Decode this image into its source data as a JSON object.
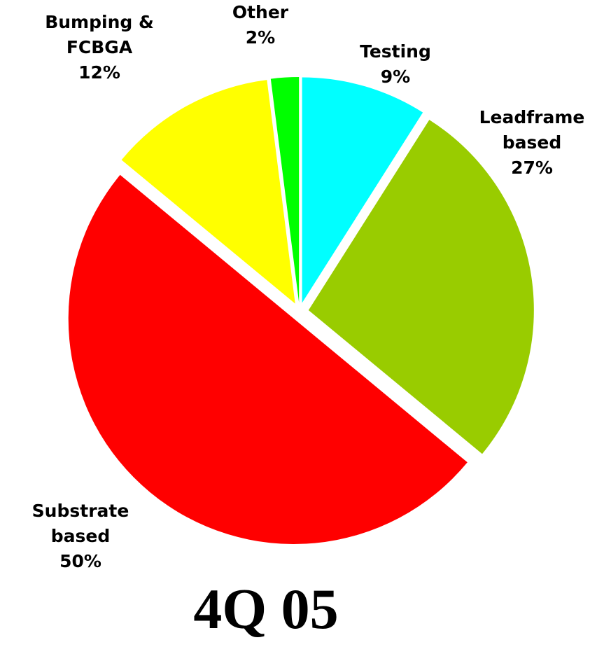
{
  "chart_data": {
    "type": "pie",
    "title": "4Q 05",
    "categories": [
      "Testing",
      "Leadframe based",
      "Substrate based",
      "Bumping & FCBGA",
      "Other"
    ],
    "values": [
      9,
      27,
      50,
      12,
      2
    ],
    "value_labels": [
      "9%",
      "27%",
      "50%",
      "12%",
      "2%"
    ],
    "colors": [
      "#00ffff",
      "#99cc00",
      "#ff0000",
      "#ffff00",
      "#00ff00"
    ]
  }
}
